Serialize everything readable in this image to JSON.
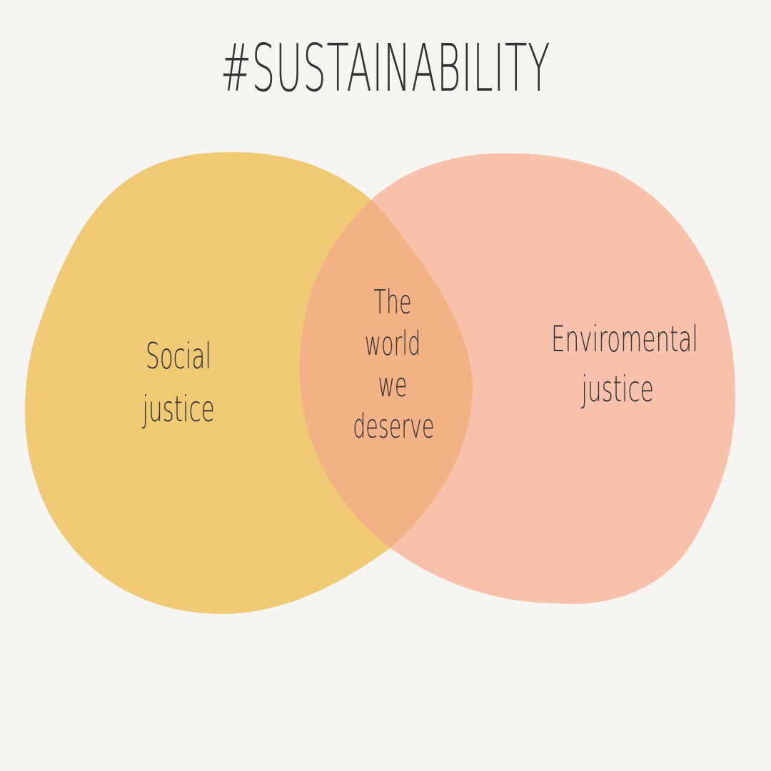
{
  "title": "#SUSTAINABILITY",
  "colors": {
    "background": "#f6f5f2",
    "left_set": "#efc973",
    "right_set": "#f8c1ac",
    "overlap": "#f3b285",
    "text": "#333333"
  },
  "sets": {
    "left": {
      "line1": "Social",
      "line2": "justice"
    },
    "right": {
      "line1": "Enviromental",
      "line2": "justice"
    },
    "overlap": {
      "line1": "The",
      "line2": "world",
      "line3": "we",
      "line4": "deserve"
    }
  }
}
